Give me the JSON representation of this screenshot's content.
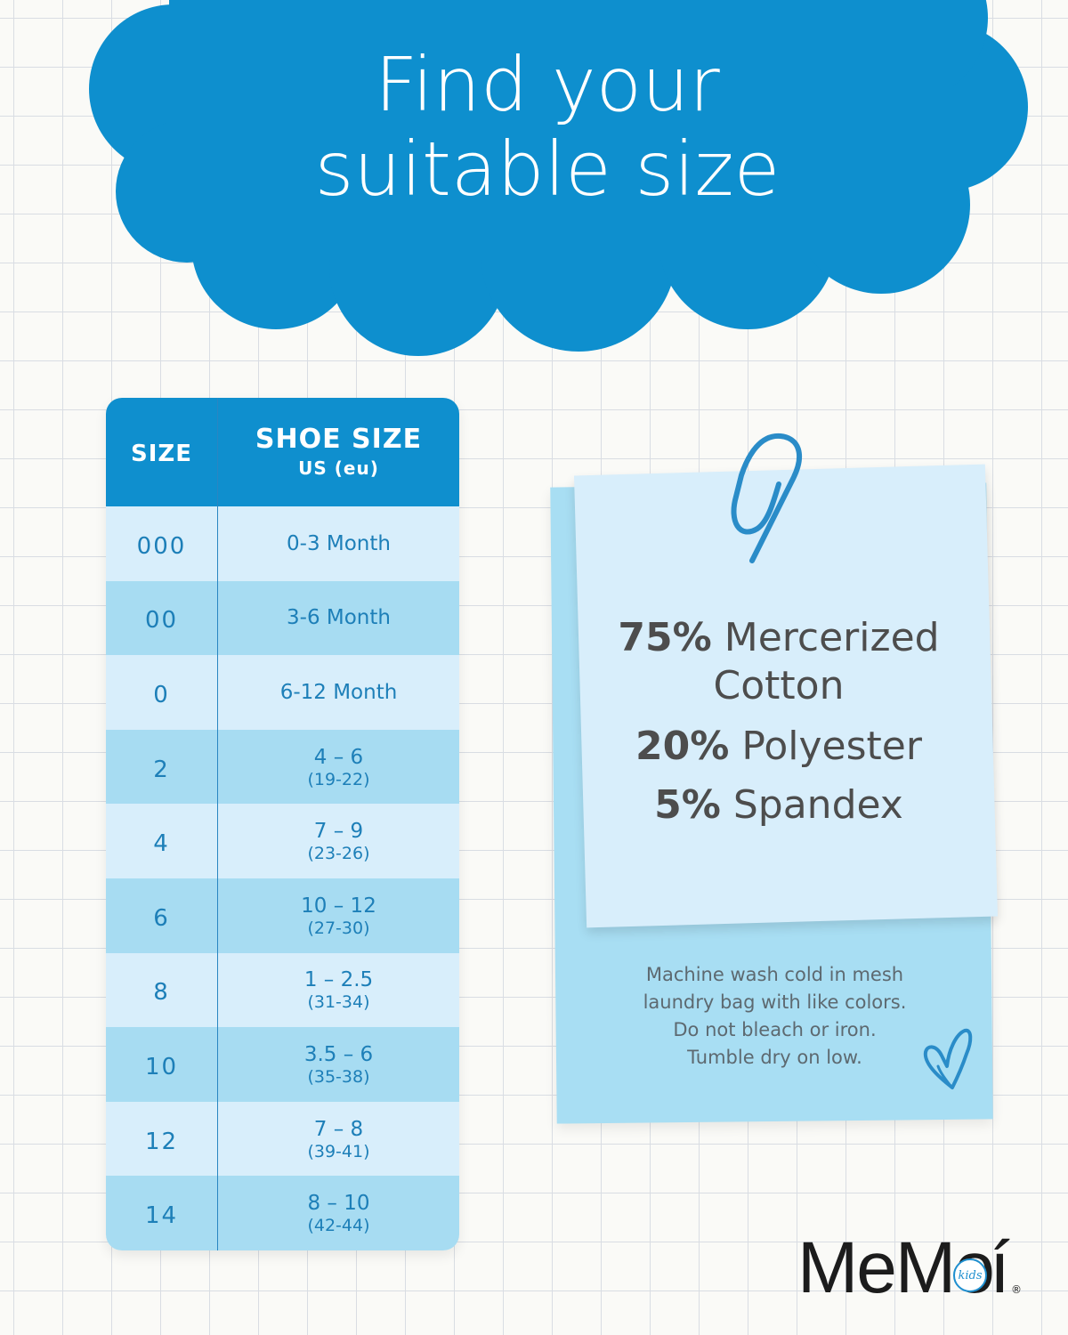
{
  "header": {
    "line1": "Find your",
    "line2": "suitable size",
    "cloud_color": "#0e8fce"
  },
  "table": {
    "col_size": "SIZE",
    "col_shoe": "SHOE SIZE",
    "col_shoe_sub": "US (eu)",
    "rows": [
      {
        "size": "000",
        "us": "0-3 Month",
        "eu": ""
      },
      {
        "size": "00",
        "us": "3-6 Month",
        "eu": ""
      },
      {
        "size": "0",
        "us": "6-12 Month",
        "eu": ""
      },
      {
        "size": "2",
        "us": "4 – 6",
        "eu": "(19-22)"
      },
      {
        "size": "4",
        "us": "7 – 9",
        "eu": "(23-26)"
      },
      {
        "size": "6",
        "us": "10 – 12",
        "eu": "(27-30)"
      },
      {
        "size": "8",
        "us": "1 – 2.5",
        "eu": "(31-34)"
      },
      {
        "size": "10",
        "us": "3.5 – 6",
        "eu": "(35-38)"
      },
      {
        "size": "12",
        "us": "7 – 8",
        "eu": "(39-41)"
      },
      {
        "size": "14",
        "us": "8 – 10",
        "eu": "(42-44)"
      }
    ]
  },
  "composition": {
    "cotton_pct": "75%",
    "cotton_label_a": "Mercerized",
    "cotton_label_b": "Cotton",
    "poly_pct": "20%",
    "poly_label": "Polyester",
    "span_pct": "5%",
    "span_label": "Spandex"
  },
  "care": {
    "line1": "Machine wash cold in mesh",
    "line2": "laundry bag with like colors.",
    "line3": "Do not bleach or iron.",
    "line4": "Tumble dry on low."
  },
  "logo": {
    "text": "MeMo",
    "kids": "kids",
    "i": "í",
    "reg": "®"
  },
  "icons": {
    "paperclip": "paperclip-icon",
    "heart": "heart-doodle-icon"
  },
  "colors": {
    "accent": "#0f8fce",
    "row_light": "#d8eefb",
    "row_dark": "#a7dcf2",
    "text_blue": "#1d7fb8"
  }
}
